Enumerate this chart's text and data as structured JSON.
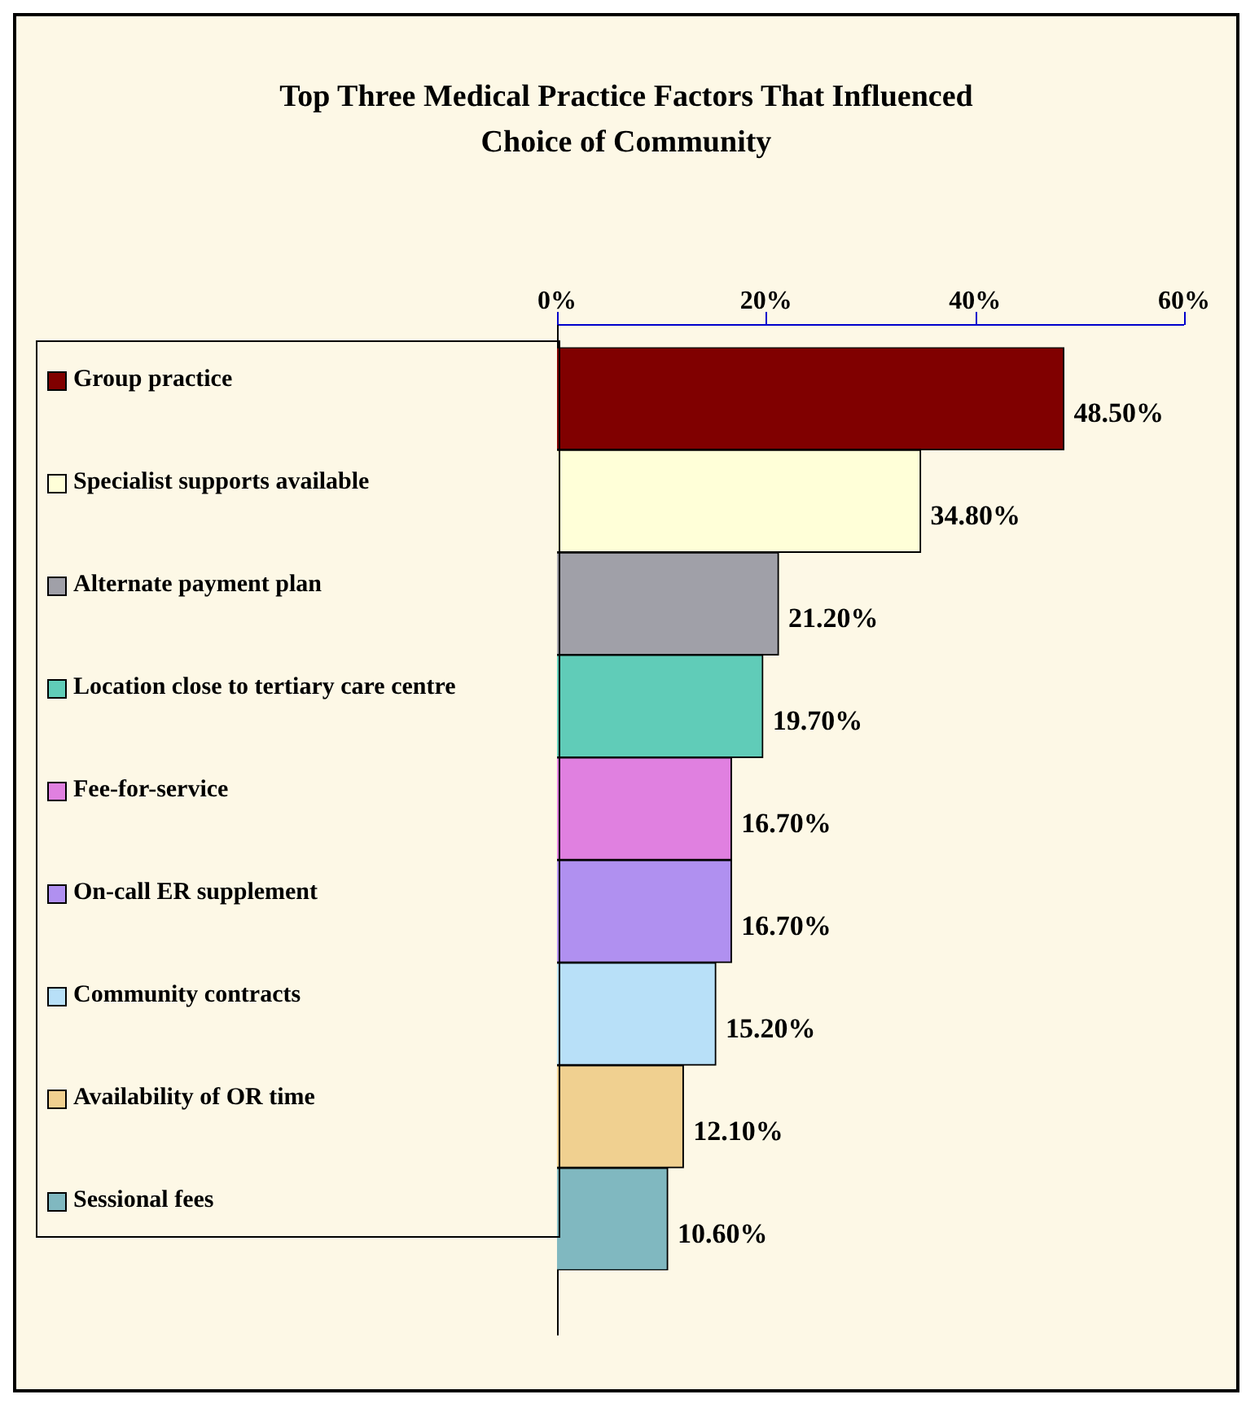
{
  "chart_data": {
    "type": "bar",
    "orientation": "horizontal",
    "title": "Top Three Medical Practice Factors That Influenced Choice of Community",
    "categories": [
      "Group practice",
      "Specialist supports available",
      "Alternate payment plan",
      "Location close to tertiary care centre",
      "Fee-for-service",
      "On-call ER supplement",
      "Community contracts",
      "Availability of OR time",
      "Sessional fees"
    ],
    "values": [
      48.5,
      34.8,
      21.2,
      19.7,
      16.7,
      16.7,
      15.2,
      12.1,
      10.6
    ],
    "value_labels": [
      "48.50%",
      "34.80%",
      "21.20%",
      "19.70%",
      "16.70%",
      "16.70%",
      "15.20%",
      "12.10%",
      "10.60%"
    ],
    "colors": [
      "#800000",
      "#ffffd8",
      "#a0a0a8",
      "#60ccb8",
      "#e080e0",
      "#b090f0",
      "#b8e0f8",
      "#f0d090",
      "#80b8c0"
    ],
    "xlim": [
      0,
      60
    ],
    "xticks": [
      {
        "value": 0,
        "label": "0%"
      },
      {
        "value": 20,
        "label": "20%"
      },
      {
        "value": 40,
        "label": "40%"
      },
      {
        "value": 60,
        "label": "60%"
      }
    ],
    "grid": false
  }
}
